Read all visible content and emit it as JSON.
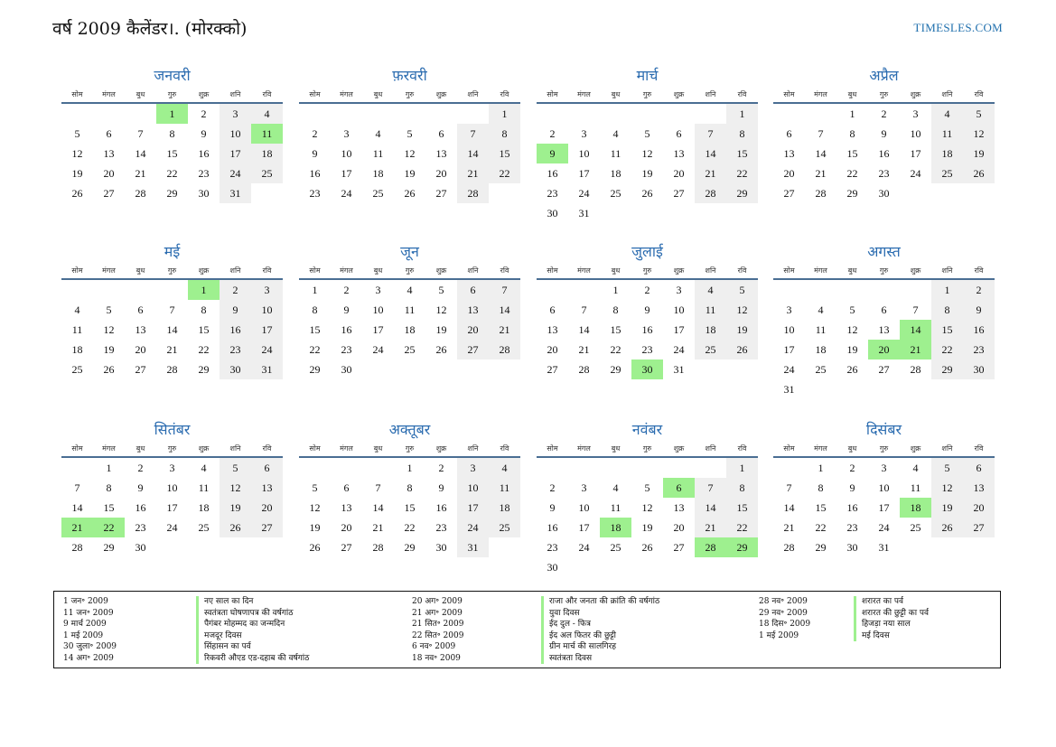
{
  "header": {
    "title": "वर्ष 2009 कैलेंडर।. (मोरक्को)",
    "site": "TIMESLES.COM"
  },
  "weekdays": [
    "सोम",
    "मंगल",
    "बुध",
    "गुरु",
    "शुक्र",
    "शनि",
    "रवि"
  ],
  "colors": {
    "holiday": "#9ef08f",
    "weekend": "#efefef",
    "accent": "#2b6cb0",
    "rule": "#4a6e93"
  },
  "months": [
    {
      "name": "जनवरी",
      "offset": 3,
      "days": 31,
      "holidays": [
        1,
        11
      ]
    },
    {
      "name": "फ़रवरी",
      "offset": 6,
      "days": 28,
      "holidays": []
    },
    {
      "name": "मार्च",
      "offset": 6,
      "days": 31,
      "holidays": [
        9
      ]
    },
    {
      "name": "अप्रैल",
      "offset": 2,
      "days": 30,
      "holidays": []
    },
    {
      "name": "मई",
      "offset": 4,
      "days": 31,
      "holidays": [
        1
      ]
    },
    {
      "name": "जून",
      "offset": 0,
      "days": 30,
      "holidays": []
    },
    {
      "name": "जुलाई",
      "offset": 2,
      "days": 31,
      "holidays": [
        30
      ]
    },
    {
      "name": "अगस्त",
      "offset": 5,
      "days": 31,
      "holidays": [
        14,
        20,
        21
      ]
    },
    {
      "name": "सितंबर",
      "offset": 1,
      "days": 30,
      "holidays": [
        21,
        22
      ]
    },
    {
      "name": "अक्तूबर",
      "offset": 3,
      "days": 31,
      "holidays": []
    },
    {
      "name": "नवंबर",
      "offset": 6,
      "days": 30,
      "holidays": [
        6,
        18,
        28,
        29
      ]
    },
    {
      "name": "दिसंबर",
      "offset": 1,
      "days": 31,
      "holidays": [
        18
      ]
    }
  ],
  "holidays": {
    "col1_dates": [
      "1 जन॰ 2009",
      "11 जन॰ 2009",
      "9 मार्च 2009",
      "1 मई 2009",
      "30 जुला॰ 2009",
      "14 अग॰ 2009"
    ],
    "col1_names": [
      "नए साल का दिन",
      "स्वतंत्रता घोषणापत्र की वर्षगांठ",
      "पैगंबर मोहम्मद का जन्मदिन",
      "मजदूर दिवस",
      "सिंहासन का पर्व",
      "रिकवरी औएड एड-दहाब की वर्षगांठ"
    ],
    "col2_dates": [
      "20 अग॰ 2009",
      "21 अग॰ 2009",
      "21 सित॰ 2009",
      "22 सित॰ 2009",
      "6 नव॰ 2009",
      "18 नव॰ 2009"
    ],
    "col2_names": [
      "राजा और जनता की क्रांति की वर्षगांठ",
      "युवा दिवस",
      "ईद दुल - फित्र",
      "ईद अल फितर की छुट्टी",
      "ग्रीन मार्च की सालगिरह",
      "स्वतंत्रता दिवस"
    ],
    "col3_dates": [
      "28 नव॰ 2009",
      "29 नव॰ 2009",
      "18 दिस॰ 2009",
      "1 मई 2009"
    ],
    "col3_names": [
      "शरारत का पर्व",
      "शरारत की छुट्टी का पर्व",
      "हिजड़ा नया साल",
      "मई दिवस"
    ]
  }
}
